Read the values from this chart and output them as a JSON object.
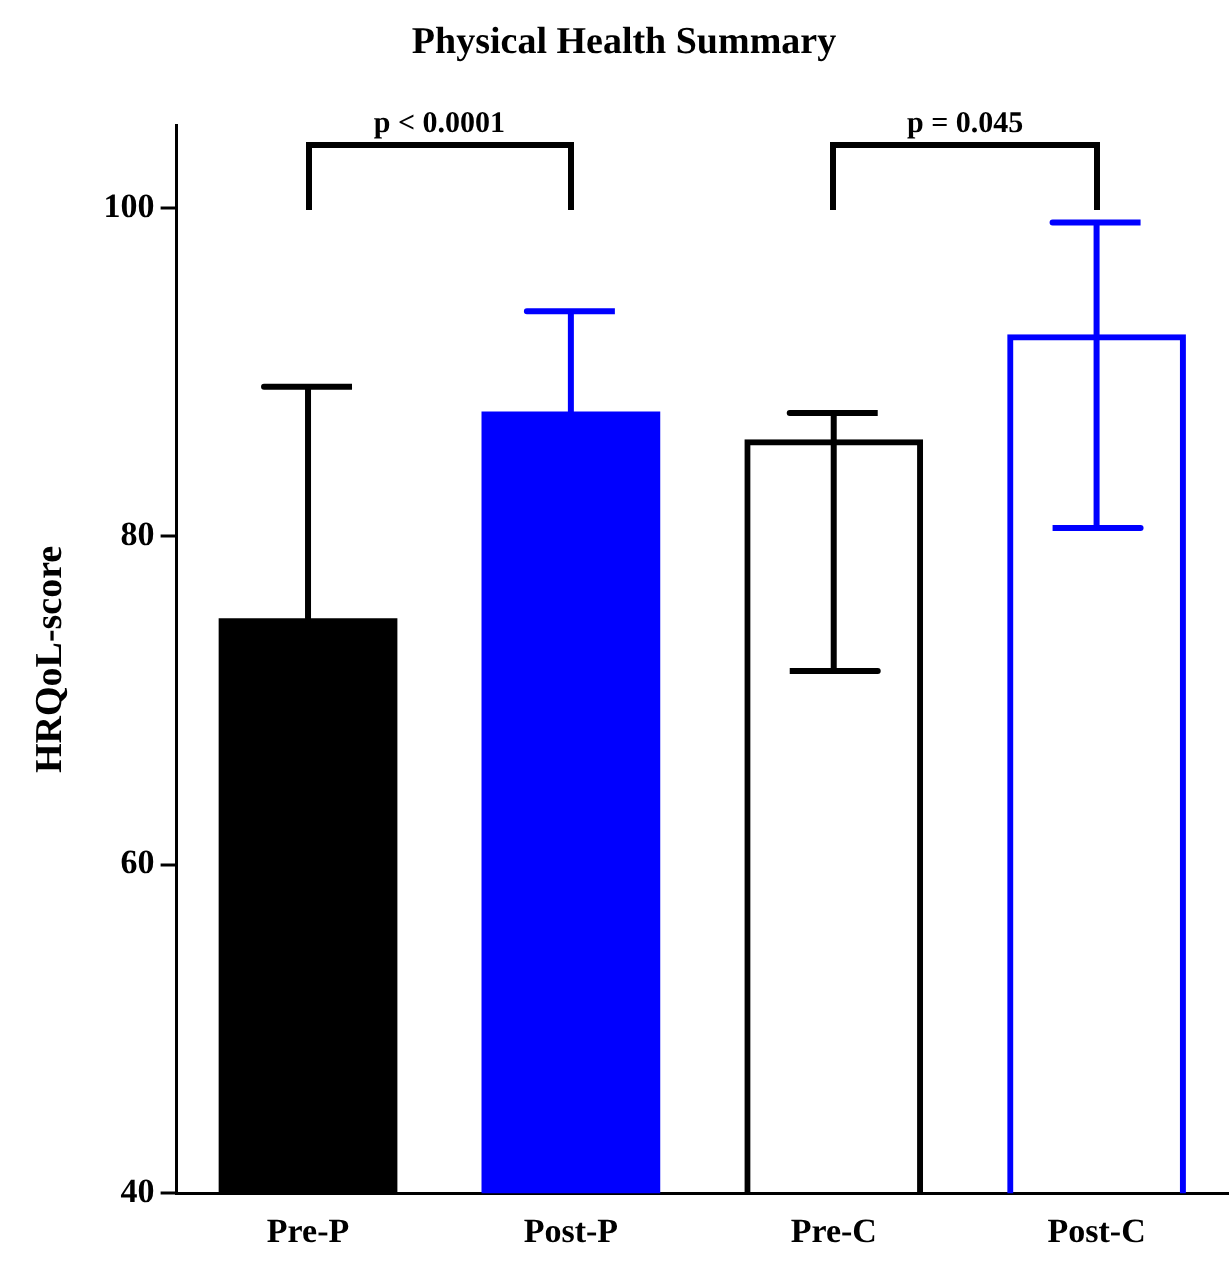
{
  "chart_data": {
    "type": "bar",
    "title": "Physical Health Summary",
    "ylabel": "HRQoL-score",
    "categories": [
      "Pre-P",
      "Post-P",
      "Pre-C",
      "Post-C"
    ],
    "values": [
      75,
      87.6,
      85.9,
      92.3
    ],
    "colors": [
      "#000000",
      "#0000ff",
      "#000000",
      "#0000ff"
    ],
    "errors": [
      [
        75,
        89.1
      ],
      [
        87.6,
        93.7
      ],
      [
        71.8,
        87.5
      ],
      [
        80.5,
        99.1
      ]
    ],
    "ylim": [
      40,
      105
    ],
    "yticks": [
      40,
      60,
      80,
      100
    ],
    "grid": false,
    "legend": false,
    "annotations": [
      "p < 0.0001",
      "p = 0.045"
    ]
  }
}
